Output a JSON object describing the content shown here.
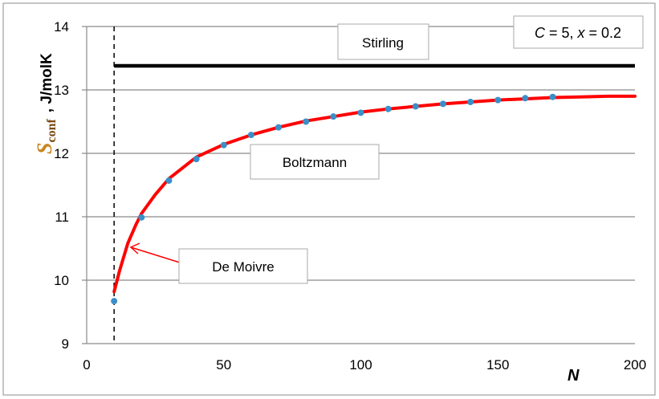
{
  "chart_data": {
    "type": "line",
    "xlim": [
      0,
      200
    ],
    "ylim": [
      9,
      14
    ],
    "x_ticks": [
      0,
      50,
      100,
      150,
      200
    ],
    "y_ticks": [
      9,
      10,
      11,
      12,
      13,
      14
    ],
    "xlabel": "N",
    "ylabel": {
      "symbol": "S",
      "subscript": "conf",
      "unit": ", J/molK"
    },
    "grid": "horizontal",
    "legend": "none",
    "curve_color": "#ff0000",
    "marker_color": "#3a8fc8",
    "stirling_color": "#000000",
    "series": [
      {
        "name": "Stirling",
        "type": "line",
        "x": [
          10,
          200
        ],
        "y": [
          13.38,
          13.38
        ]
      },
      {
        "name": "De Moivre",
        "type": "line",
        "x": [
          10,
          12,
          15,
          18,
          20,
          25,
          30,
          40,
          50,
          60,
          70,
          80,
          90,
          100,
          110,
          120,
          130,
          140,
          150,
          160,
          170,
          180,
          190,
          200
        ],
        "y": [
          9.82,
          10.15,
          10.58,
          10.88,
          11.05,
          11.35,
          11.6,
          11.94,
          12.14,
          12.29,
          12.41,
          12.51,
          12.58,
          12.65,
          12.7,
          12.74,
          12.78,
          12.81,
          12.84,
          12.86,
          12.88,
          12.89,
          12.9,
          12.9
        ]
      },
      {
        "name": "Boltzmann",
        "type": "scatter",
        "x": [
          10,
          20,
          30,
          40,
          50,
          60,
          70,
          80,
          90,
          100,
          110,
          120,
          130,
          140,
          150,
          160,
          170
        ],
        "y": [
          9.67,
          10.99,
          11.57,
          11.91,
          12.13,
          12.29,
          12.41,
          12.5,
          12.58,
          12.64,
          12.7,
          12.74,
          12.78,
          12.81,
          12.84,
          12.87,
          12.89
        ]
      }
    ],
    "reference_line": {
      "x": 10,
      "style": "dashed"
    },
    "annotations": {
      "stirling": "Stirling",
      "boltzmann": "Boltzmann",
      "de_moivre": "De Moivre",
      "params": {
        "c_var": "C",
        "c_val": " = 5, ",
        "x_var": "x",
        "x_val": " = 0.2"
      }
    }
  }
}
